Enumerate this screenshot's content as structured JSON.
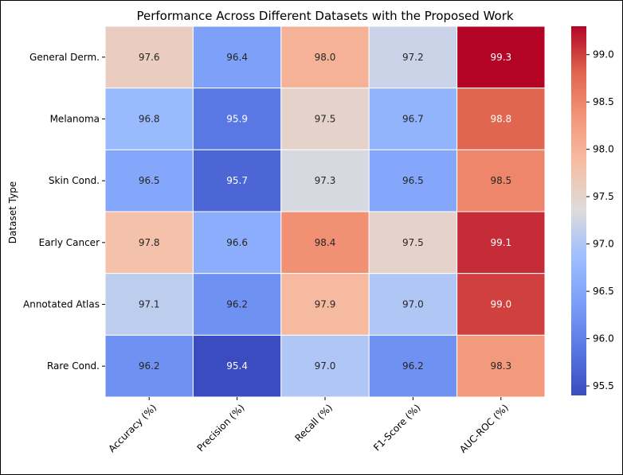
{
  "chart_data": {
    "type": "heatmap",
    "title": "Performance Across Different Datasets with the Proposed Work",
    "xlabel": "",
    "ylabel": "Dataset Type",
    "columns": [
      "Accuracy (%)",
      "Precision (%)",
      "Recall (%)",
      "F1-Score (%)",
      "AUC-ROC (%)"
    ],
    "rows": [
      "General Derm.",
      "Melanoma",
      "Skin Cond.",
      "Early Cancer",
      "Annotated Atlas",
      "Rare Cond."
    ],
    "values": [
      [
        97.6,
        96.4,
        98.0,
        97.2,
        99.3
      ],
      [
        96.8,
        95.9,
        97.5,
        96.7,
        98.8
      ],
      [
        96.5,
        95.7,
        97.3,
        96.5,
        98.5
      ],
      [
        97.8,
        96.6,
        98.4,
        97.5,
        99.1
      ],
      [
        97.1,
        96.2,
        97.9,
        97.0,
        99.0
      ],
      [
        96.2,
        95.4,
        97.0,
        96.2,
        98.3
      ]
    ],
    "colormap": "coolwarm",
    "vmin": 95.4,
    "vmax": 99.3,
    "colorbar_ticks": [
      "95.5",
      "96.0",
      "96.5",
      "97.0",
      "97.5",
      "98.0",
      "98.5",
      "99.0"
    ],
    "annotations": true,
    "grid_lines": "white"
  }
}
